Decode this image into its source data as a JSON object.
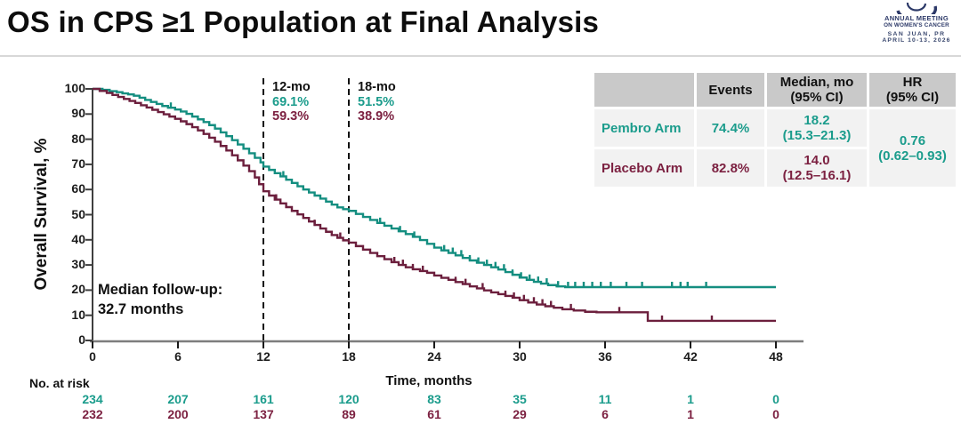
{
  "header": {
    "title": "OS in CPS ≥1 Population at Final Analysis"
  },
  "logo": {
    "line1": "ANNUAL MEETING",
    "line2": "ON WOMEN'S CANCER",
    "line3": "SAN JUAN, PR",
    "line4": "APRIL 10-13, 2026",
    "color": "#2c3968"
  },
  "summary_table": {
    "col_headers": [
      "",
      "Events",
      "Median, mo\n(95% CI)",
      "HR\n(95% CI)"
    ],
    "rows": [
      {
        "label": "Pembro Arm",
        "events": "74.4%",
        "median": "18.2\n(15.3–21.3)"
      },
      {
        "label": "Placebo Arm",
        "events": "82.8%",
        "median": "14.0\n(12.5–16.1)"
      }
    ],
    "hr": "0.76\n(0.62–0.93)"
  },
  "annotations": {
    "mo12": {
      "label": "12-mo",
      "pembro": "69.1%",
      "placebo": "59.3%"
    },
    "mo18": {
      "label": "18-mo",
      "pembro": "51.5%",
      "placebo": "38.9%"
    },
    "followup": {
      "line1": "Median follow-up:",
      "line2": "32.7 months"
    }
  },
  "chart_data": {
    "type": "line",
    "subtype": "kaplan-meier-step",
    "title": "",
    "xlabel": "Time, months",
    "ylabel": "Overall Survival, %",
    "xlim": [
      0,
      48
    ],
    "ylim": [
      0,
      100
    ],
    "x_ticks": [
      0,
      6,
      12,
      18,
      24,
      30,
      36,
      42,
      48
    ],
    "y_ticks": [
      0,
      10,
      20,
      30,
      40,
      50,
      60,
      70,
      80,
      90,
      100
    ],
    "grid": false,
    "legend_position": "none",
    "dashed_timepoints_months": [
      12,
      18
    ],
    "at_risk_label": "No. at risk",
    "series": [
      {
        "name": "Pembro Arm",
        "color": "#148E80",
        "text_color": "#1B9C8C",
        "steps": [
          [
            0,
            100
          ],
          [
            0.7,
            99.6
          ],
          [
            1.2,
            99.1
          ],
          [
            1.7,
            98.7
          ],
          [
            2.1,
            98.2
          ],
          [
            2.5,
            97.8
          ],
          [
            2.9,
            97.3
          ],
          [
            3.3,
            96.5
          ],
          [
            3.7,
            95.6
          ],
          [
            4.1,
            94.8
          ],
          [
            4.5,
            94
          ],
          [
            4.9,
            93.2
          ],
          [
            5.3,
            92.5
          ],
          [
            5.8,
            91.8
          ],
          [
            6.2,
            91
          ],
          [
            6.6,
            90.1
          ],
          [
            7,
            89
          ],
          [
            7.4,
            87.9
          ],
          [
            7.8,
            86.8
          ],
          [
            8.2,
            85.6
          ],
          [
            8.6,
            84.2
          ],
          [
            9,
            82.7
          ],
          [
            9.4,
            81.2
          ],
          [
            9.8,
            79.6
          ],
          [
            10.2,
            77.9
          ],
          [
            10.6,
            76.2
          ],
          [
            11,
            74.4
          ],
          [
            11.4,
            72.6
          ],
          [
            11.8,
            70.8
          ],
          [
            12,
            69.1
          ],
          [
            12.4,
            67.8
          ],
          [
            12.8,
            66.5
          ],
          [
            13.2,
            65.2
          ],
          [
            13.6,
            63.9
          ],
          [
            14,
            62.6
          ],
          [
            14.4,
            61.3
          ],
          [
            14.8,
            60
          ],
          [
            15.2,
            58.8
          ],
          [
            15.6,
            57.6
          ],
          [
            16,
            56.4
          ],
          [
            16.4,
            55.2
          ],
          [
            16.8,
            54
          ],
          [
            17.2,
            52.9
          ],
          [
            17.6,
            52.2
          ],
          [
            18,
            51.5
          ],
          [
            18.5,
            50.3
          ],
          [
            19,
            49.1
          ],
          [
            19.5,
            47.9
          ],
          [
            20,
            46.7
          ],
          [
            20.5,
            45.6
          ],
          [
            21,
            44.5
          ],
          [
            21.5,
            43.4
          ],
          [
            22,
            42.3
          ],
          [
            22.5,
            41.2
          ],
          [
            23,
            39.9
          ],
          [
            23.5,
            38.4
          ],
          [
            24,
            36.9
          ],
          [
            24.5,
            35.8
          ],
          [
            25,
            34.8
          ],
          [
            25.5,
            33.8
          ],
          [
            26,
            32.8
          ],
          [
            26.5,
            31.8
          ],
          [
            27,
            30.9
          ],
          [
            27.5,
            30
          ],
          [
            28,
            29.1
          ],
          [
            28.5,
            28.2
          ],
          [
            29,
            27.2
          ],
          [
            29.5,
            26.1
          ],
          [
            30,
            25
          ],
          [
            30.5,
            24.1
          ],
          [
            31,
            23.3
          ],
          [
            31.5,
            22.6
          ],
          [
            32,
            22
          ],
          [
            32.6,
            21.5
          ],
          [
            33.2,
            21.2
          ]
        ],
        "censor_months": [
          5.5,
          13.4,
          20.2,
          21.6,
          22.6,
          24.7,
          25.3,
          25.9,
          26.5,
          27.1,
          27.7,
          28.3,
          28.9,
          29.5,
          30.1,
          30.7,
          31.3,
          31.9,
          32.7,
          33.4,
          33.9,
          34.5,
          35.1,
          35.7,
          36.4,
          37.5,
          38.6,
          40.7,
          41.3,
          41.8,
          43.1
        ],
        "at_risk": [
          234,
          207,
          161,
          120,
          83,
          35,
          11,
          1,
          0
        ]
      },
      {
        "name": "Placebo Arm",
        "color": "#6C1F3D",
        "text_color": "#7C2141",
        "steps": [
          [
            0,
            100
          ],
          [
            0.5,
            99.2
          ],
          [
            1,
            98.4
          ],
          [
            1.4,
            97.6
          ],
          [
            1.8,
            96.8
          ],
          [
            2.2,
            96
          ],
          [
            2.6,
            95.2
          ],
          [
            3,
            94.4
          ],
          [
            3.4,
            93.5
          ],
          [
            3.8,
            92.6
          ],
          [
            4.2,
            91.7
          ],
          [
            4.6,
            90.8
          ],
          [
            5,
            89.9
          ],
          [
            5.4,
            89
          ],
          [
            5.8,
            88.1
          ],
          [
            6.2,
            87.1
          ],
          [
            6.6,
            86
          ],
          [
            7,
            84.8
          ],
          [
            7.4,
            83.5
          ],
          [
            7.8,
            82.1
          ],
          [
            8.2,
            80.6
          ],
          [
            8.6,
            79
          ],
          [
            9,
            77.3
          ],
          [
            9.4,
            75.5
          ],
          [
            9.8,
            73.6
          ],
          [
            10.2,
            71.6
          ],
          [
            10.6,
            69.5
          ],
          [
            11,
            67.3
          ],
          [
            11.4,
            64.8
          ],
          [
            11.7,
            62.1
          ],
          [
            12,
            59.3
          ],
          [
            12.4,
            57.6
          ],
          [
            12.8,
            56
          ],
          [
            13.2,
            54.5
          ],
          [
            13.6,
            53
          ],
          [
            14,
            51.5
          ],
          [
            14.4,
            50.1
          ],
          [
            14.8,
            48.7
          ],
          [
            15.2,
            47.3
          ],
          [
            15.6,
            45.9
          ],
          [
            16,
            44.5
          ],
          [
            16.4,
            43.2
          ],
          [
            16.8,
            41.9
          ],
          [
            17.2,
            40.8
          ],
          [
            17.6,
            39.8
          ],
          [
            18,
            38.9
          ],
          [
            18.5,
            37.5
          ],
          [
            19,
            36.1
          ],
          [
            19.5,
            34.8
          ],
          [
            20,
            33.5
          ],
          [
            20.5,
            32.3
          ],
          [
            21,
            31.1
          ],
          [
            21.5,
            30
          ],
          [
            22,
            29.1
          ],
          [
            22.5,
            28.3
          ],
          [
            23,
            27.6
          ],
          [
            23.5,
            26.9
          ],
          [
            24,
            25.8
          ],
          [
            24.5,
            24.9
          ],
          [
            25,
            24.1
          ],
          [
            25.5,
            23.2
          ],
          [
            26,
            22.4
          ],
          [
            26.5,
            21.5
          ],
          [
            27,
            20.7
          ],
          [
            27.5,
            19.9
          ],
          [
            28,
            19.1
          ],
          [
            28.5,
            18.4
          ],
          [
            29,
            17.7
          ],
          [
            29.5,
            17
          ],
          [
            30,
            16
          ],
          [
            30.6,
            15.1
          ],
          [
            31.2,
            14.3
          ],
          [
            31.8,
            13.6
          ],
          [
            32.4,
            13
          ],
          [
            33,
            12.4
          ],
          [
            33.8,
            11.9
          ],
          [
            34.6,
            11.4
          ],
          [
            35.4,
            11.2
          ],
          [
            39,
            7.8
          ]
        ],
        "censor_months": [
          12.9,
          15.6,
          17.4,
          21.2,
          21.8,
          22.5,
          23.2,
          25.5,
          26.2,
          27.4,
          29,
          29.6,
          30.3,
          31,
          31.6,
          32.2,
          33.6,
          37,
          40,
          43.5
        ],
        "at_risk": [
          232,
          200,
          137,
          89,
          61,
          29,
          6,
          1,
          0
        ]
      }
    ]
  }
}
